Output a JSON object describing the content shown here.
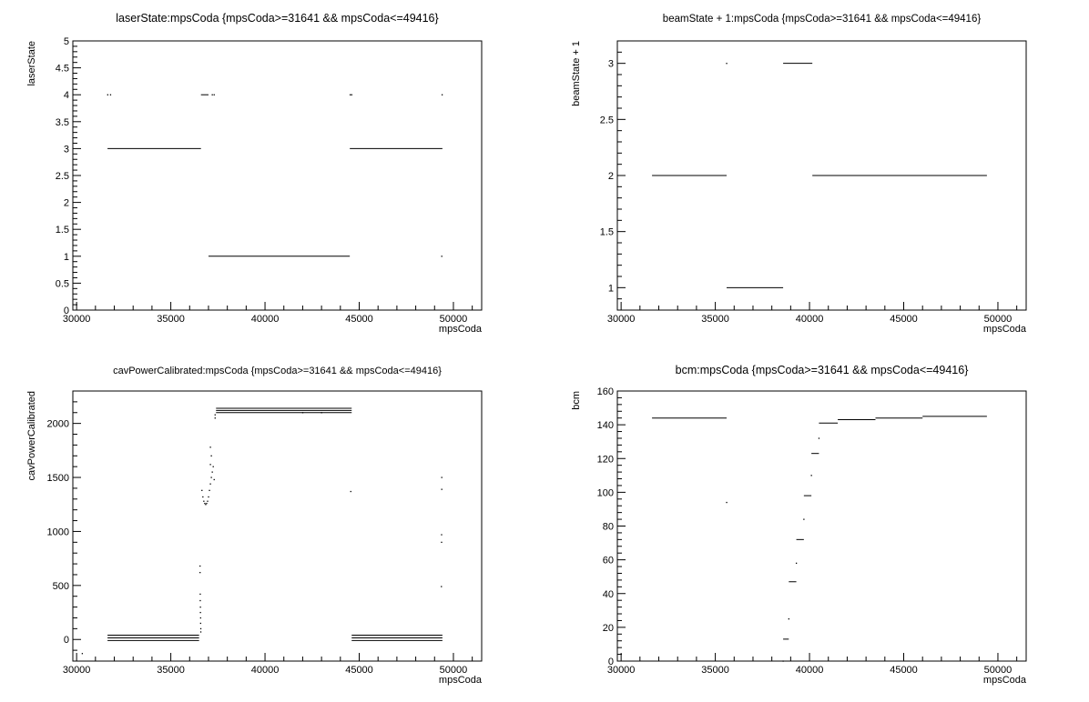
{
  "chart_data": [
    {
      "type": "scatter",
      "title": "laserState:mpsCoda {mpsCoda>=31641 && mpsCoda<=49416}",
      "xlabel": "mpsCoda",
      "ylabel": "laserState",
      "xlim": [
        29800,
        51500
      ],
      "ylim": [
        0,
        5
      ],
      "xticks": [
        30000,
        35000,
        40000,
        45000,
        50000
      ],
      "yticks": [
        0,
        0.5,
        1,
        1.5,
        2,
        2.5,
        3,
        3.5,
        4,
        4.5,
        5
      ],
      "segments": [
        {
          "x": [
            31641,
            36600
          ],
          "y": 3
        },
        {
          "x": [
            44500,
            49416
          ],
          "y": 3
        },
        {
          "x": [
            37000,
            44500
          ],
          "y": 1
        },
        {
          "x": [
            36600,
            37000
          ],
          "y": 4
        }
      ],
      "points": [
        {
          "x": 31650,
          "y": 4
        },
        {
          "x": 31800,
          "y": 4
        },
        {
          "x": 37200,
          "y": 4
        },
        {
          "x": 37300,
          "y": 4
        },
        {
          "x": 44520,
          "y": 4
        },
        {
          "x": 44600,
          "y": 4
        },
        {
          "x": 49400,
          "y": 4
        },
        {
          "x": 49380,
          "y": 1
        }
      ]
    },
    {
      "type": "scatter",
      "title": "beamState + 1:mpsCoda {mpsCoda>=31641 && mpsCoda<=49416}",
      "xlabel": "mpsCoda",
      "ylabel": "beamState + 1",
      "xlim": [
        29800,
        51500
      ],
      "ylim": [
        0.8,
        3.2
      ],
      "xticks": [
        30000,
        35000,
        40000,
        45000,
        50000
      ],
      "yticks": [
        1,
        1.5,
        2,
        2.5,
        3
      ],
      "segments": [
        {
          "x": [
            31641,
            35600
          ],
          "y": 2
        },
        {
          "x": [
            35600,
            38600
          ],
          "y": 1
        },
        {
          "x": [
            38600,
            40150
          ],
          "y": 3
        },
        {
          "x": [
            40150,
            49416
          ],
          "y": 2
        }
      ],
      "points": [
        {
          "x": 35600,
          "y": 3
        }
      ]
    },
    {
      "type": "scatter",
      "title": "cavPowerCalibrated:mpsCoda {mpsCoda>=31641 && mpsCoda<=49416}",
      "xlabel": "mpsCoda",
      "ylabel": "cavPowerCalibrated",
      "xlim": [
        29800,
        51500
      ],
      "ylim": [
        -200,
        2300
      ],
      "xticks": [
        30000,
        35000,
        40000,
        45000,
        50000
      ],
      "yticks": [
        0,
        500,
        1000,
        1500,
        2000
      ],
      "segments": [
        {
          "x": [
            31641,
            36500
          ],
          "y": 40
        },
        {
          "x": [
            31641,
            36500
          ],
          "y": 15
        },
        {
          "x": [
            31641,
            36500
          ],
          "y": -10
        },
        {
          "x": [
            37400,
            44600
          ],
          "y": 2140
        },
        {
          "x": [
            37400,
            44600
          ],
          "y": 2120
        },
        {
          "x": [
            37400,
            44600
          ],
          "y": 2100
        },
        {
          "x": [
            44600,
            49416
          ],
          "y": 40
        },
        {
          "x": [
            44600,
            49416
          ],
          "y": 15
        },
        {
          "x": [
            44600,
            49416
          ],
          "y": -10
        }
      ],
      "points": [
        {
          "x": 30300,
          "y": -130
        },
        {
          "x": 36550,
          "y": 680
        },
        {
          "x": 36550,
          "y": 620
        },
        {
          "x": 36560,
          "y": 420
        },
        {
          "x": 36560,
          "y": 360
        },
        {
          "x": 36570,
          "y": 300
        },
        {
          "x": 36570,
          "y": 250
        },
        {
          "x": 36580,
          "y": 200
        },
        {
          "x": 36580,
          "y": 150
        },
        {
          "x": 36590,
          "y": 100
        },
        {
          "x": 36590,
          "y": 70
        },
        {
          "x": 36650,
          "y": 1380
        },
        {
          "x": 36700,
          "y": 1320
        },
        {
          "x": 36750,
          "y": 1280
        },
        {
          "x": 36800,
          "y": 1260
        },
        {
          "x": 36850,
          "y": 1250
        },
        {
          "x": 36900,
          "y": 1260
        },
        {
          "x": 36950,
          "y": 1280
        },
        {
          "x": 37000,
          "y": 1320
        },
        {
          "x": 37050,
          "y": 1380
        },
        {
          "x": 37100,
          "y": 1440
        },
        {
          "x": 37150,
          "y": 1500
        },
        {
          "x": 37200,
          "y": 1550
        },
        {
          "x": 37100,
          "y": 1620
        },
        {
          "x": 37150,
          "y": 1700
        },
        {
          "x": 37100,
          "y": 1780
        },
        {
          "x": 37250,
          "y": 1600
        },
        {
          "x": 37300,
          "y": 1480
        },
        {
          "x": 37350,
          "y": 2050
        },
        {
          "x": 37350,
          "y": 2080
        },
        {
          "x": 42000,
          "y": 2100
        },
        {
          "x": 43000,
          "y": 2100
        },
        {
          "x": 44550,
          "y": 1370
        },
        {
          "x": 49380,
          "y": 1500
        },
        {
          "x": 49380,
          "y": 1390
        },
        {
          "x": 49370,
          "y": 970
        },
        {
          "x": 49370,
          "y": 900
        },
        {
          "x": 49360,
          "y": 490
        }
      ]
    },
    {
      "type": "scatter",
      "title": "bcm:mpsCoda {mpsCoda>=31641 && mpsCoda<=49416}",
      "xlabel": "mpsCoda",
      "ylabel": "bcm",
      "xlim": [
        29800,
        51500
      ],
      "ylim": [
        0,
        160
      ],
      "xticks": [
        30000,
        35000,
        40000,
        45000,
        50000
      ],
      "yticks": [
        0,
        20,
        40,
        60,
        80,
        100,
        120,
        140,
        160
      ],
      "segments": [
        {
          "x": [
            31641,
            35600
          ],
          "y": 144
        },
        {
          "x": [
            38600,
            38900
          ],
          "y": 13
        },
        {
          "x": [
            38900,
            39300
          ],
          "y": 47
        },
        {
          "x": [
            39300,
            39700
          ],
          "y": 72
        },
        {
          "x": [
            39700,
            40100
          ],
          "y": 98
        },
        {
          "x": [
            40100,
            40500
          ],
          "y": 123
        },
        {
          "x": [
            40500,
            41500
          ],
          "y": 141
        },
        {
          "x": [
            41500,
            43500
          ],
          "y": 143
        },
        {
          "x": [
            43500,
            46000
          ],
          "y": 144
        },
        {
          "x": [
            46000,
            49416
          ],
          "y": 145
        }
      ],
      "points": [
        {
          "x": 35600,
          "y": 94
        },
        {
          "x": 38600,
          "y": 0
        },
        {
          "x": 38900,
          "y": 25
        },
        {
          "x": 39300,
          "y": 58
        },
        {
          "x": 39700,
          "y": 84
        },
        {
          "x": 40100,
          "y": 110
        },
        {
          "x": 40500,
          "y": 132
        }
      ]
    }
  ]
}
